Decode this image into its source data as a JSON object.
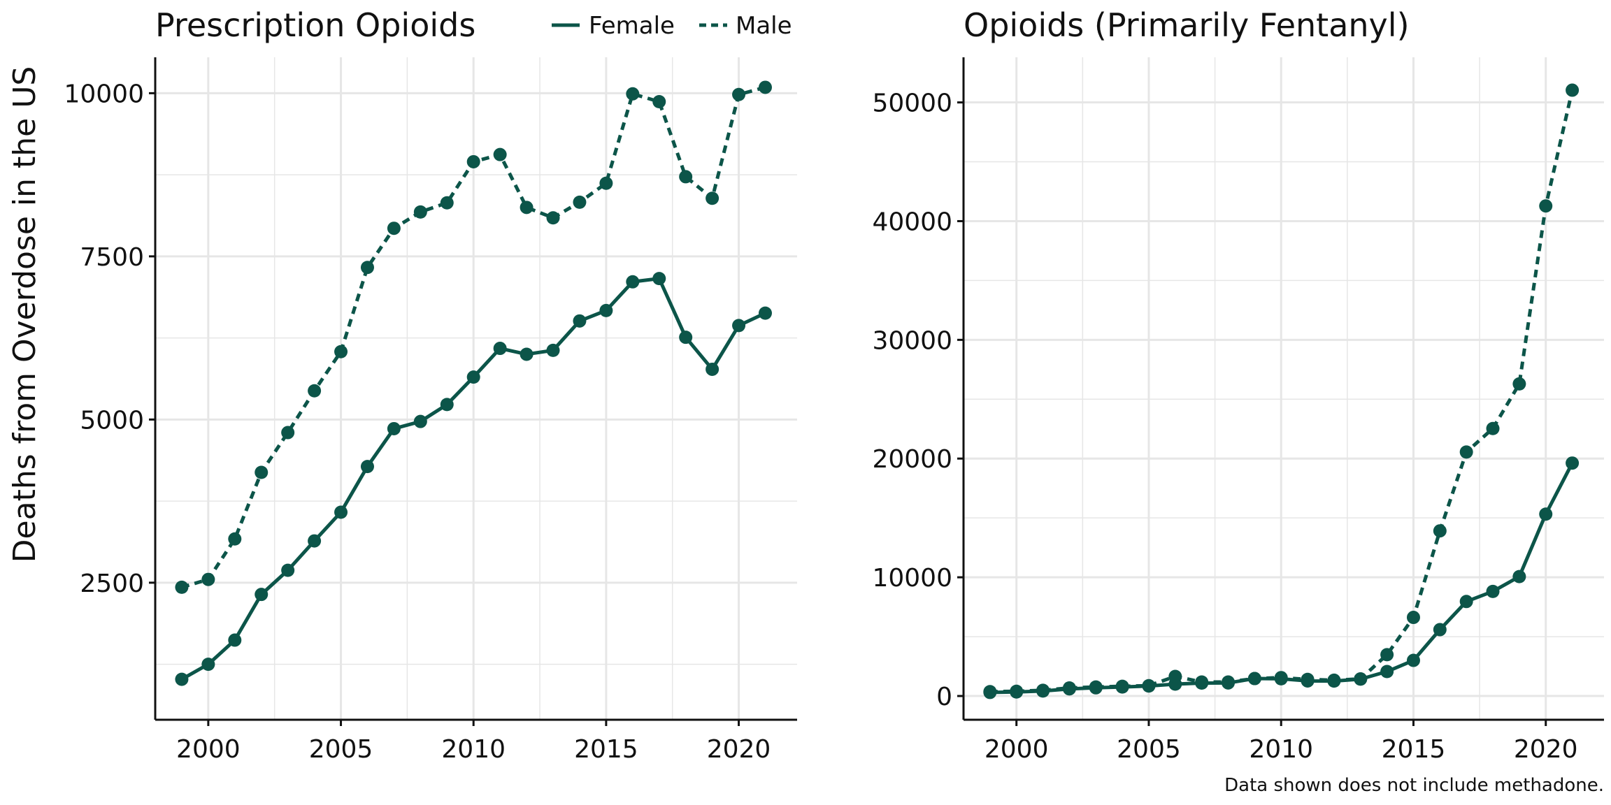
{
  "ylabel": "Deaths from Overdose in the US",
  "caption": "Data shown does not include methadone.",
  "legend": [
    {
      "name": "Female",
      "linestyle": "solid"
    },
    {
      "name": "Male",
      "linestyle": "dashed"
    }
  ],
  "colors": {
    "series": "#0c5549",
    "grid": "#e6e6e6",
    "axis": "#111111"
  },
  "chart_data": [
    {
      "type": "line",
      "title": "Prescription Opioids",
      "xlabel": "",
      "ylabel": "Deaths from Overdose in the US",
      "xlim": [
        1998,
        2022.2
      ],
      "ylim": [
        400,
        10550
      ],
      "xticks": [
        2000,
        2005,
        2010,
        2015,
        2020
      ],
      "xtick_labels": [
        "2000",
        "2005",
        "2010",
        "2015",
        "2020"
      ],
      "yticks": [
        2500,
        5000,
        7500,
        10000
      ],
      "ytick_labels": [
        "2500",
        "5000",
        "7500",
        "10000"
      ],
      "grid": true,
      "legend_position": "top-right",
      "x": [
        1999,
        2000,
        2001,
        2002,
        2003,
        2004,
        2005,
        2006,
        2007,
        2008,
        2009,
        2010,
        2011,
        2012,
        2013,
        2014,
        2015,
        2016,
        2017,
        2018,
        2019,
        2020,
        2021
      ],
      "series": [
        {
          "name": "Female",
          "linestyle": "solid",
          "values": [
            1020,
            1250,
            1620,
            2320,
            2690,
            3140,
            3580,
            4280,
            4860,
            4970,
            5230,
            5650,
            6090,
            6000,
            6060,
            6510,
            6670,
            7110,
            7160,
            6260,
            5770,
            6440,
            6630
          ]
        },
        {
          "name": "Male",
          "linestyle": "dashed",
          "values": [
            2430,
            2550,
            3170,
            4190,
            4800,
            5440,
            6040,
            7330,
            7930,
            8180,
            8320,
            8950,
            9060,
            8250,
            8090,
            8330,
            8620,
            9990,
            9870,
            8720,
            8390,
            9980,
            10090
          ]
        }
      ]
    },
    {
      "type": "line",
      "title": "Opioids (Primarily Fentanyl)",
      "xlabel": "",
      "ylabel": "",
      "xlim": [
        1998,
        2022.2
      ],
      "ylim": [
        -2000,
        53800
      ],
      "xticks": [
        2000,
        2005,
        2010,
        2015,
        2020
      ],
      "xtick_labels": [
        "2000",
        "2005",
        "2010",
        "2015",
        "2020"
      ],
      "yticks": [
        0,
        10000,
        20000,
        30000,
        40000,
        50000
      ],
      "ytick_labels": [
        "0",
        "10000",
        "20000",
        "30000",
        "40000",
        "50000"
      ],
      "grid": true,
      "x": [
        1999,
        2000,
        2001,
        2002,
        2003,
        2004,
        2005,
        2006,
        2007,
        2008,
        2009,
        2010,
        2011,
        2012,
        2013,
        2014,
        2015,
        2016,
        2017,
        2018,
        2019,
        2020,
        2021
      ],
      "series": [
        {
          "name": "Female",
          "linestyle": "solid",
          "values": [
            300,
            340,
            420,
            600,
            690,
            760,
            840,
            1000,
            1090,
            1100,
            1470,
            1450,
            1270,
            1260,
            1420,
            2060,
            3000,
            5590,
            7960,
            8810,
            10060,
            15320,
            19620
          ]
        },
        {
          "name": "Male",
          "linestyle": "dashed",
          "values": [
            370,
            400,
            480,
            680,
            760,
            820,
            870,
            1650,
            1180,
            1180,
            1470,
            1550,
            1400,
            1330,
            1440,
            3480,
            6620,
            13910,
            20550,
            22530,
            26290,
            41280,
            51030
          ]
        }
      ]
    }
  ]
}
